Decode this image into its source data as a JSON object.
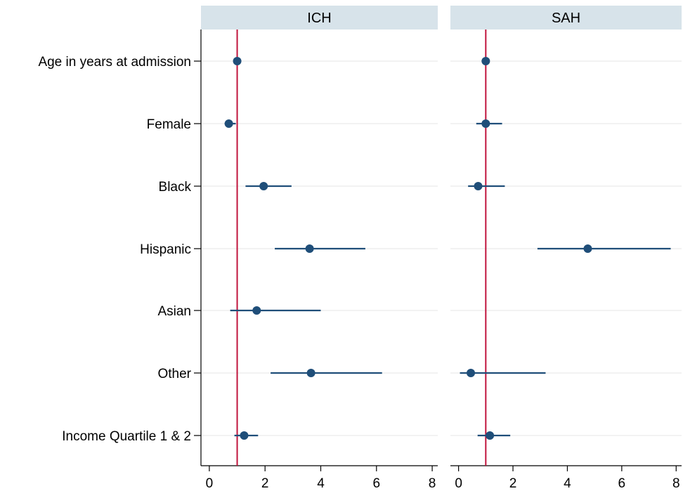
{
  "chart_data": [
    {
      "type": "scatter",
      "subtype": "forest-plot",
      "title": "ICH",
      "categories": [
        "Age in years at admission",
        "Female",
        "Black",
        "Hispanic",
        "Asian",
        "Other",
        "Income Quartile 1 & 2"
      ],
      "estimates": [
        1.0,
        0.7,
        1.95,
        3.6,
        1.7,
        3.65,
        1.25
      ],
      "ci_low": [
        0.98,
        0.55,
        1.3,
        2.35,
        0.75,
        2.2,
        0.9
      ],
      "ci_high": [
        1.02,
        0.95,
        2.95,
        5.6,
        4.0,
        6.2,
        1.75
      ],
      "reference_line": 1,
      "xlim": [
        -0.3,
        8.2
      ],
      "xticks": [
        0,
        2,
        4,
        6,
        8
      ]
    },
    {
      "type": "scatter",
      "subtype": "forest-plot",
      "title": "SAH",
      "categories": [
        "Age in years at admission",
        "Female",
        "Black",
        "Hispanic",
        "Asian",
        "Other",
        "Income Quartile 1 & 2"
      ],
      "estimates": [
        1.0,
        1.0,
        0.72,
        4.75,
        null,
        0.45,
        1.15
      ],
      "ci_low": [
        0.98,
        0.65,
        0.35,
        2.9,
        null,
        0.05,
        0.7
      ],
      "ci_high": [
        1.02,
        1.6,
        1.7,
        7.8,
        null,
        3.2,
        1.9
      ],
      "reference_line": 1,
      "xlim": [
        -0.3,
        8.2
      ],
      "xticks": [
        0,
        2,
        4,
        6,
        8
      ]
    }
  ],
  "colors": {
    "marker": "#1f4e79",
    "reference_line": "#c0143c",
    "panel_header": "#d7e3ea",
    "gridline": "#e6e6e6"
  }
}
